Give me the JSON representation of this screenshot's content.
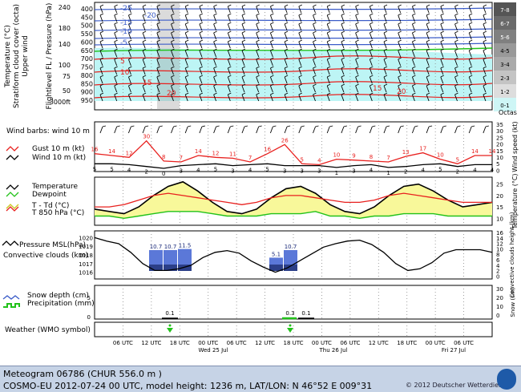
{
  "station": {
    "title": "Meteogram 06786 (CHUR  556.0 m )",
    "model_line": "COSMO-EU 2012-07-24  00 UTC, model height: 1236 m,  LAT/LON: N 46°52 E 009°31",
    "copyright": "© 2012 Deutscher Wetterdienst"
  },
  "colors": {
    "red": "#e8201e",
    "green": "#22c21a",
    "yellow": "#f8f89a",
    "blue": "#3b5cc8",
    "cloud": "#bdf5f5",
    "black": "#000000"
  },
  "chart_data": [
    {
      "type": "heatmap",
      "panel": "upper-air",
      "ylabel_lines": [
        "Temperature (°C)",
        "Stratiform cloud cover (octa)",
        "Upper wind"
      ],
      "y2label": "Flightlevel FL / Pressure (hPa)",
      "fl_ticks": [
        "240",
        "180",
        "140",
        "100",
        "75",
        "50",
        "3000ft"
      ],
      "pressure_ticks": [
        "400",
        "450",
        "500",
        "550",
        "600",
        "650",
        "700",
        "750",
        "800",
        "850",
        "900",
        "950"
      ],
      "temp_labels": [
        "-25",
        "-20",
        "-15",
        "-10",
        "-5",
        "5",
        "10",
        "15",
        "20",
        "15",
        "20"
      ],
      "octas_scale": [
        "7-8",
        "6-7",
        "5-6",
        "4-5",
        "3-4",
        "2-3",
        "1-2",
        "0-1"
      ],
      "octas_label": "Octas"
    },
    {
      "type": "line",
      "panel": "wind-10m",
      "barbs_label": "Wind barbs: wind 10 m",
      "series": [
        {
          "name": "Gust 10 m (kt)",
          "color": "#e8201e",
          "values": [
            16,
            14,
            12,
            30,
            8,
            7,
            14,
            12,
            11,
            7,
            16,
            26,
            5,
            4,
            10,
            9,
            8,
            7,
            13,
            17,
            10,
            5,
            14,
            14
          ]
        },
        {
          "name": "Wind 10 m (kt)",
          "color": "#000000",
          "values": [
            5,
            5,
            4,
            2,
            0,
            3,
            4,
            5,
            3,
            4,
            5,
            3,
            3,
            3,
            1,
            3,
            4,
            1,
            2,
            4,
            5,
            2,
            4,
            4
          ]
        }
      ],
      "y2label": "Wind speed (kt)",
      "ylim": [
        0,
        35
      ],
      "yticks": [
        "35",
        "30",
        "25",
        "20",
        "15",
        "10",
        "5",
        "0"
      ]
    },
    {
      "type": "area",
      "panel": "temperature",
      "series": [
        {
          "name": "Temperature",
          "color": "#000000",
          "values": [
            14,
            13,
            12,
            15,
            20,
            24,
            26,
            22,
            17,
            13,
            12,
            14,
            19,
            23,
            24,
            21,
            16,
            13,
            12,
            15,
            20,
            24,
            25,
            22,
            18,
            15,
            16,
            17
          ]
        },
        {
          "name": "Dewpoint",
          "color": "#22c21a",
          "values": [
            11,
            11,
            10,
            11,
            12,
            13,
            13,
            13,
            12,
            11,
            11,
            11,
            12,
            12,
            12,
            13,
            11,
            11,
            10,
            11,
            11,
            12,
            12,
            12,
            11,
            11,
            11,
            11
          ]
        },
        {
          "name": "T - Td (°C)",
          "color": "#f8f89a"
        },
        {
          "name": "T 850 hPa (°C)",
          "color": "#e8201e",
          "values": [
            15,
            15,
            16,
            18,
            20,
            21,
            20,
            19,
            18,
            17,
            16,
            17,
            19,
            20,
            20,
            19,
            18,
            17,
            17,
            18,
            20,
            21,
            20,
            19,
            18,
            17,
            17,
            17
          ]
        }
      ],
      "y2label": "Temperature (°C)",
      "ylim": [
        8,
        27
      ],
      "yticks": [
        "25",
        "20",
        "15",
        "10"
      ]
    },
    {
      "type": "bar",
      "panel": "pressure",
      "pressure_label": "Pressure MSL(hPa)",
      "bar_label": "Convective clouds (km)",
      "ylim": [
        1015.5,
        1020.5
      ],
      "yticks": [
        "1020",
        "1019",
        "1018",
        "1017",
        "1016"
      ],
      "pressure_values": [
        1020,
        1019.6,
        1019.3,
        1018.3,
        1017,
        1016.2,
        1016.2,
        1016.4,
        1016.8,
        1017.7,
        1018.3,
        1018.5,
        1018.2,
        1017.3,
        1016.6,
        1016,
        1016.5,
        1017.3,
        1018.1,
        1018.9,
        1019.3,
        1019.6,
        1019.7,
        1019.2,
        1018.3,
        1017,
        1016.2,
        1016.4,
        1017.1,
        1018.2,
        1018.6,
        1018.6,
        1018.6,
        1018.3
      ],
      "convective_bars": [
        {
          "label": "10.7",
          "value": 10.7
        },
        {
          "label": "10.7",
          "value": 10.7
        },
        {
          "label": "11.5",
          "value": 11.5
        },
        {
          "label": "5.1",
          "value": 5.1
        },
        {
          "label": "10.7",
          "value": 10.7
        }
      ],
      "y2label": "Convective clouds height (km)",
      "y2ticks": [
        "16",
        "14",
        "12",
        "10",
        "8",
        "6",
        "4",
        "2",
        "0"
      ]
    },
    {
      "type": "bar",
      "panel": "precipitation",
      "series_labels": [
        "Snow depth (cm)",
        "Precipitation (mm)"
      ],
      "y_left_ticks": [
        "5",
        "0"
      ],
      "y2label": "Snow (cm)",
      "y2ticks": [
        "30",
        "20",
        "10",
        "0"
      ],
      "precip_labels": [
        "0.1",
        "0.3",
        "0.1"
      ]
    },
    {
      "type": "table",
      "panel": "weather",
      "label": "Weather (WMO symbol)",
      "x_ticks": [
        "06 UTC",
        "12 UTC",
        "18 UTC",
        "00 UTC",
        "06 UTC",
        "12 UTC",
        "18 UTC",
        "00 UTC",
        "06 UTC",
        "12 UTC",
        "18 UTC",
        "00 UTC",
        "06 UTC"
      ],
      "day_labels": [
        "Wed 25 Jul",
        "Thu 26 Jul",
        "Fri 27 Jul"
      ]
    }
  ]
}
